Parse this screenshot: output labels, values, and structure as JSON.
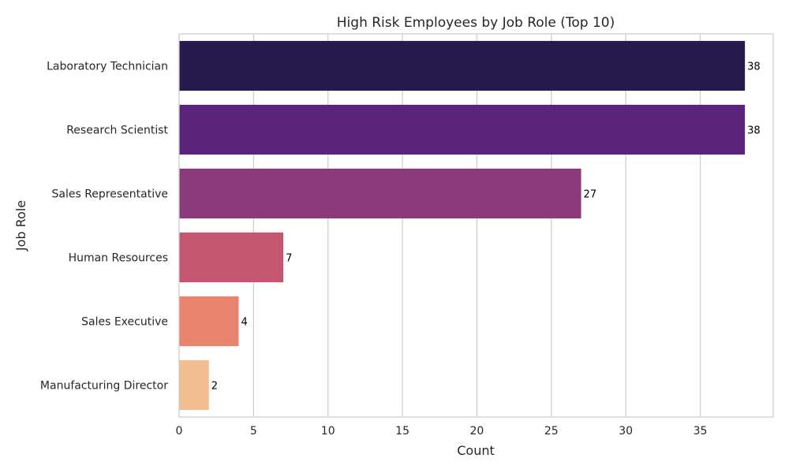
{
  "chart_data": {
    "type": "bar",
    "orientation": "horizontal",
    "title": "High Risk Employees by Job Role (Top 10)",
    "xlabel": "Count",
    "ylabel": "Job Role",
    "categories": [
      "Laboratory Technician",
      "Research Scientist",
      "Sales Representative",
      "Human Resources",
      "Sales Executive",
      "Manufacturing Director"
    ],
    "values": [
      38,
      38,
      27,
      7,
      4,
      2
    ],
    "data_labels": [
      "38",
      "38",
      "27",
      "7",
      "4",
      "2"
    ],
    "xlim": [
      0,
      39.9
    ],
    "xticks": [
      0,
      5,
      10,
      15,
      20,
      25,
      30,
      35
    ],
    "xtick_labels": [
      "0",
      "5",
      "10",
      "15",
      "20",
      "25",
      "30",
      "35"
    ],
    "grid": "vertical",
    "legend": "none",
    "colors": [
      "#271a4d",
      "#5a247a",
      "#8a3a7b",
      "#c4576f",
      "#e8836e",
      "#f1bd91"
    ]
  }
}
